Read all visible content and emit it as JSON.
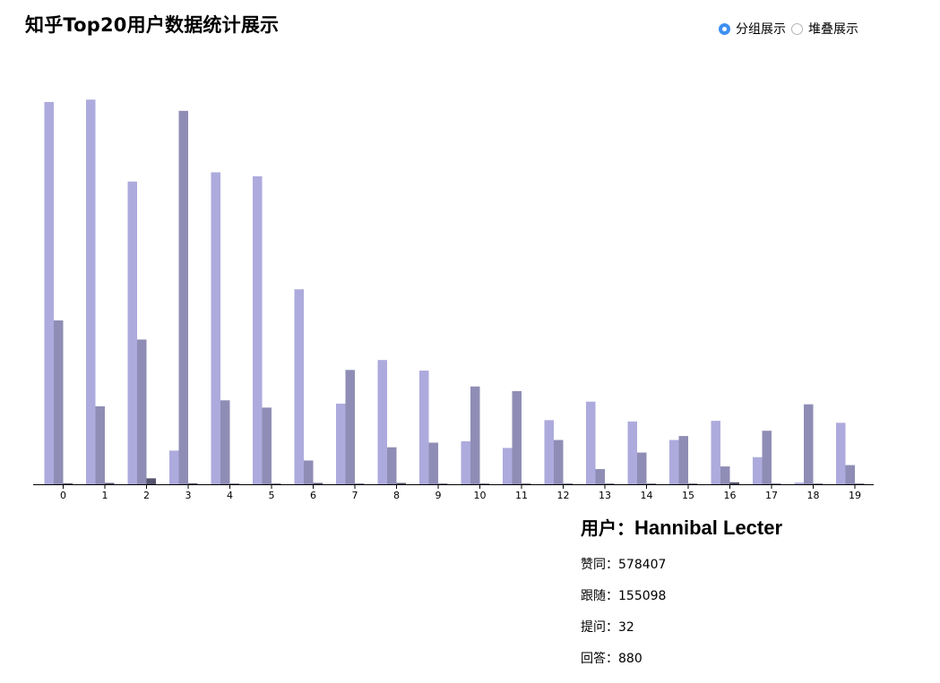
{
  "title": "知乎Top20用户数据统计展示",
  "modes": [
    {
      "label": "分组展示",
      "checked": true
    },
    {
      "label": "堆叠展示",
      "checked": false
    }
  ],
  "chart_data": {
    "type": "bar",
    "grouped": true,
    "categories": [
      "0",
      "1",
      "2",
      "3",
      "4",
      "5",
      "6",
      "7",
      "8",
      "9",
      "10",
      "11",
      "12",
      "13",
      "14",
      "15",
      "16",
      "17",
      "18",
      "19"
    ],
    "ylim": [
      0,
      600000
    ],
    "series": [
      {
        "color": "#adaadd",
        "values": [
          578407,
          582000,
          458000,
          51000,
          472000,
          466000,
          295000,
          122000,
          188000,
          172000,
          65000,
          55000,
          97000,
          125000,
          95000,
          67000,
          96000,
          41000,
          2500,
          93000
        ]
      },
      {
        "color": "#8f8db5",
        "values": [
          248000,
          118000,
          219000,
          565000,
          127000,
          116000,
          36000,
          173000,
          56000,
          63000,
          148000,
          141000,
          67000,
          23000,
          48000,
          73000,
          27000,
          81000,
          121000,
          29000
        ]
      },
      {
        "color": "#55546e",
        "values": [
          1500,
          2000,
          9000,
          1500,
          1000,
          1000,
          2000,
          1000,
          2000,
          1000,
          1000,
          1000,
          1000,
          1000,
          1000,
          1000,
          3000,
          1000,
          1000,
          1000
        ]
      }
    ]
  },
  "info": {
    "user_label": "用户：",
    "user_name": "Hannibal Lecter",
    "stats": [
      {
        "label": "赞同：",
        "value": "578407"
      },
      {
        "label": "跟随：",
        "value": "155098"
      },
      {
        "label": "提问：",
        "value": "32"
      },
      {
        "label": "回答：",
        "value": "880"
      }
    ]
  }
}
